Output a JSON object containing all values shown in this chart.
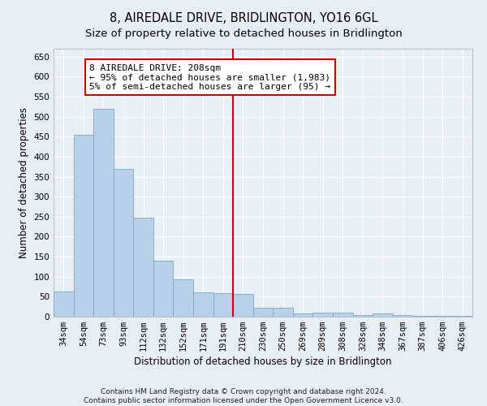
{
  "title": "8, AIREDALE DRIVE, BRIDLINGTON, YO16 6GL",
  "subtitle": "Size of property relative to detached houses in Bridlington",
  "xlabel": "Distribution of detached houses by size in Bridlington",
  "ylabel": "Number of detached properties",
  "categories": [
    "34sqm",
    "54sqm",
    "73sqm",
    "93sqm",
    "112sqm",
    "132sqm",
    "152sqm",
    "171sqm",
    "191sqm",
    "210sqm",
    "230sqm",
    "250sqm",
    "269sqm",
    "289sqm",
    "308sqm",
    "328sqm",
    "348sqm",
    "367sqm",
    "387sqm",
    "406sqm",
    "426sqm"
  ],
  "values": [
    62,
    455,
    520,
    370,
    248,
    140,
    93,
    60,
    58,
    57,
    23,
    22,
    8,
    10,
    10,
    5,
    8,
    5,
    3,
    2,
    3
  ],
  "bar_color": "#b8d0e8",
  "bar_edge_color": "#7aaac8",
  "vline_color": "#cc0000",
  "annotation_line1": "8 AIREDALE DRIVE: 208sqm",
  "annotation_line2": "← 95% of detached houses are smaller (1,983)",
  "annotation_line3": "5% of semi-detached houses are larger (95) →",
  "annotation_box_color": "#ffffff",
  "annotation_box_edge": "#cc0000",
  "ylim": [
    0,
    670
  ],
  "yticks": [
    0,
    50,
    100,
    150,
    200,
    250,
    300,
    350,
    400,
    450,
    500,
    550,
    600,
    650
  ],
  "footnote_line1": "Contains HM Land Registry data © Crown copyright and database right 2024.",
  "footnote_line2": "Contains public sector information licensed under the Open Government Licence v3.0.",
  "title_fontsize": 10.5,
  "subtitle_fontsize": 9.5,
  "xlabel_fontsize": 8.5,
  "ylabel_fontsize": 8.5,
  "tick_fontsize": 7.5,
  "annotation_fontsize": 8,
  "footnote_fontsize": 6.5,
  "background_color": "#e8eef5",
  "plot_background": "#e8eef5",
  "grid_color": "#ffffff"
}
